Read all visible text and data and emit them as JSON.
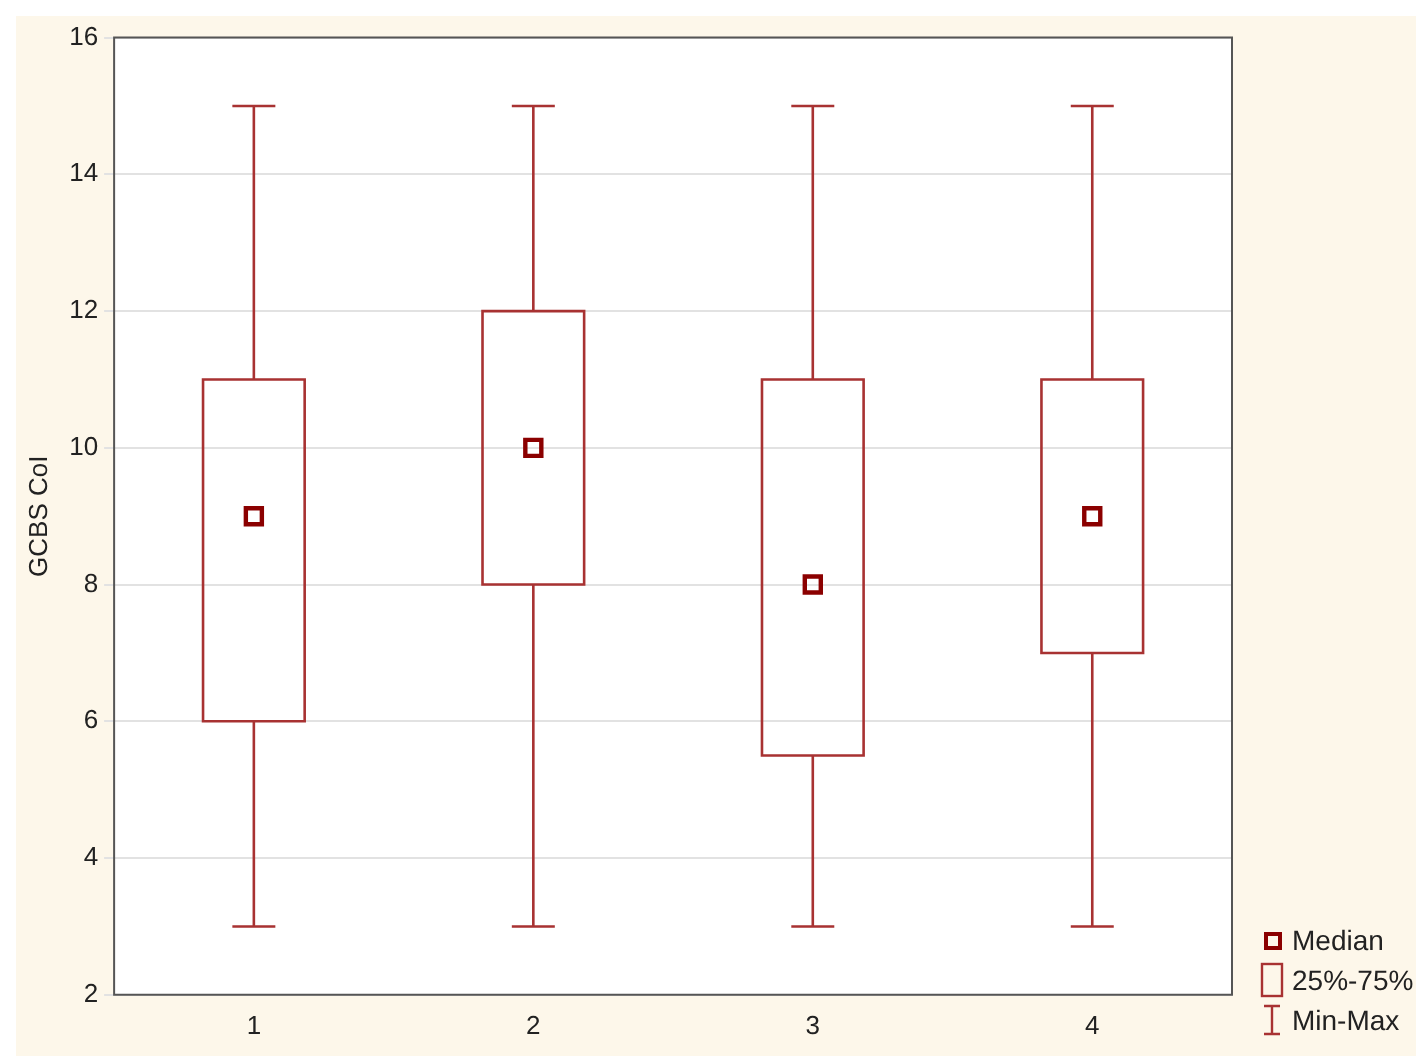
{
  "chart_data": {
    "type": "box",
    "ylabel": "GCBS CoI",
    "categories": [
      "1",
      "2",
      "3",
      "4"
    ],
    "series": [
      {
        "color": "#a83232",
        "boxes": [
          {
            "low": 3,
            "q1": 6,
            "median": 9,
            "q3": 11,
            "high": 15
          },
          {
            "low": 3,
            "q1": 8,
            "median": 10,
            "q3": 12,
            "high": 15
          },
          {
            "low": 3,
            "q1": 5.5,
            "median": 8,
            "q3": 11,
            "high": 15
          },
          {
            "low": 3,
            "q1": 7,
            "median": 9,
            "q3": 11,
            "high": 15
          }
        ]
      }
    ],
    "ylim": [
      2,
      16
    ],
    "yticks": [
      2,
      4,
      6,
      8,
      10,
      12,
      14,
      16
    ],
    "grid": "y",
    "marker": "square",
    "annotations": [
      "Median",
      "25%-75%",
      "Min-Max"
    ]
  }
}
